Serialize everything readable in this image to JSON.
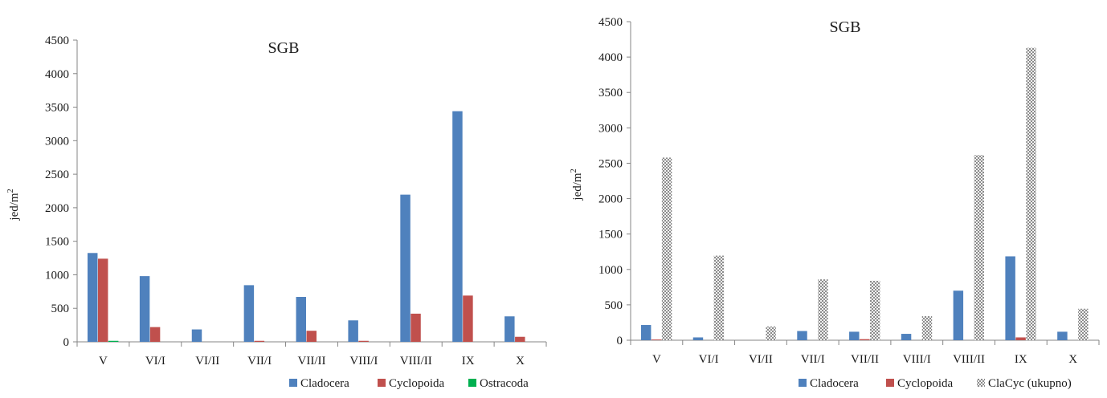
{
  "chart_data": [
    {
      "type": "bar",
      "title": "SGB",
      "ylabel": "jed/m²",
      "xlabel": "",
      "ylim": [
        0,
        4500
      ],
      "yticks": [
        0,
        500,
        1000,
        1500,
        2000,
        2500,
        3000,
        3500,
        4000,
        4500
      ],
      "categories": [
        "V",
        "VI/I",
        "VI/II",
        "VII/I",
        "VII/II",
        "VIII/I",
        "VIII/II",
        "IX",
        "X"
      ],
      "series": [
        {
          "name": "Cladocera",
          "color": "#4f81bd",
          "pattern": "solid",
          "values": [
            1325,
            980,
            185,
            845,
            670,
            320,
            2195,
            3440,
            380
          ]
        },
        {
          "name": "Cyclopoida",
          "color": "#c0504d",
          "pattern": "solid",
          "values": [
            1240,
            220,
            0,
            15,
            165,
            15,
            420,
            690,
            75
          ]
        },
        {
          "name": "Ostracoda",
          "color": "#00b050",
          "pattern": "solid",
          "values": [
            15,
            0,
            0,
            0,
            0,
            0,
            0,
            0,
            0
          ]
        }
      ],
      "legend_position": "bottom-right",
      "grid": false
    },
    {
      "type": "bar",
      "title": "SGB",
      "ylabel": "jed/m²",
      "xlabel": "",
      "ylim": [
        0,
        4500
      ],
      "yticks": [
        0,
        500,
        1000,
        1500,
        2000,
        2500,
        3000,
        3500,
        4000,
        4500
      ],
      "categories": [
        "V",
        "VI/I",
        "VI/II",
        "VII/I",
        "VII/II",
        "VIII/I",
        "VIII/II",
        "IX",
        "X"
      ],
      "series": [
        {
          "name": "Cladocera",
          "color": "#4f81bd",
          "pattern": "solid",
          "values": [
            215,
            40,
            0,
            130,
            120,
            90,
            700,
            1185,
            120
          ]
        },
        {
          "name": "Cyclopoida",
          "color": "#c0504d",
          "pattern": "solid",
          "values": [
            10,
            0,
            0,
            0,
            15,
            0,
            0,
            40,
            0
          ]
        },
        {
          "name": "ClaCyc (ukupno)",
          "color": "#9a9a9a",
          "pattern": "dotted",
          "values": [
            2580,
            1195,
            195,
            860,
            840,
            340,
            2615,
            4130,
            445
          ]
        }
      ],
      "legend_position": "bottom-right",
      "grid": false
    }
  ]
}
